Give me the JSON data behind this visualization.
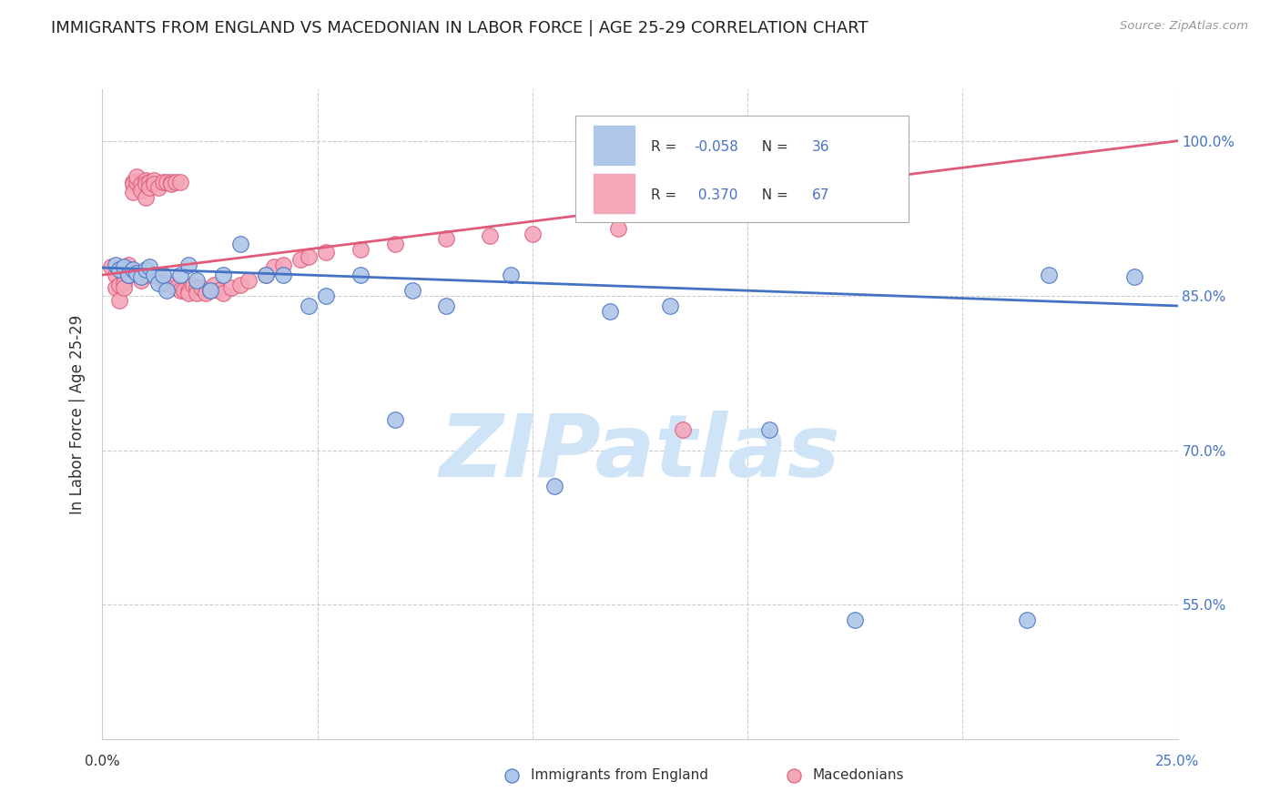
{
  "title": "IMMIGRANTS FROM ENGLAND VS MACEDONIAN IN LABOR FORCE | AGE 25-29 CORRELATION CHART",
  "source": "Source: ZipAtlas.com",
  "ylabel": "In Labor Force | Age 25-29",
  "y_tick_values": [
    1.0,
    0.85,
    0.7,
    0.55
  ],
  "xlim": [
    0.0,
    0.25
  ],
  "ylim": [
    0.42,
    1.05
  ],
  "legend_england": "Immigrants from England",
  "legend_macedonians": "Macedonians",
  "R_england": -0.058,
  "N_england": 36,
  "R_macedonian": 0.37,
  "N_macedonian": 67,
  "color_england": "#aec6e8",
  "color_macedonian": "#f4a7b9",
  "line_color_england": "#4472c4",
  "line_color_macedonian": "#e05a7a",
  "watermark": "ZIPatlas",
  "watermark_color": "#d0e4f7",
  "england_x": [
    0.003,
    0.004,
    0.005,
    0.006,
    0.007,
    0.008,
    0.009,
    0.01,
    0.011,
    0.012,
    0.013,
    0.014,
    0.015,
    0.018,
    0.02,
    0.022,
    0.025,
    0.028,
    0.032,
    0.038,
    0.042,
    0.048,
    0.052,
    0.06,
    0.068,
    0.072,
    0.08,
    0.095,
    0.105,
    0.118,
    0.132,
    0.155,
    0.175,
    0.215,
    0.22,
    0.24
  ],
  "england_y": [
    0.88,
    0.875,
    0.878,
    0.87,
    0.875,
    0.872,
    0.868,
    0.875,
    0.878,
    0.87,
    0.862,
    0.87,
    0.855,
    0.87,
    0.88,
    0.865,
    0.855,
    0.87,
    0.9,
    0.87,
    0.87,
    0.84,
    0.85,
    0.87,
    0.73,
    0.855,
    0.84,
    0.87,
    0.665,
    0.835,
    0.84,
    0.72,
    0.535,
    0.535,
    0.87,
    0.868
  ],
  "macedonian_x": [
    0.002,
    0.003,
    0.003,
    0.004,
    0.004,
    0.005,
    0.005,
    0.005,
    0.006,
    0.006,
    0.006,
    0.007,
    0.007,
    0.007,
    0.008,
    0.008,
    0.009,
    0.009,
    0.009,
    0.01,
    0.01,
    0.01,
    0.011,
    0.011,
    0.011,
    0.012,
    0.012,
    0.013,
    0.013,
    0.014,
    0.014,
    0.015,
    0.015,
    0.016,
    0.016,
    0.017,
    0.017,
    0.018,
    0.018,
    0.019,
    0.02,
    0.02,
    0.021,
    0.022,
    0.022,
    0.023,
    0.024,
    0.025,
    0.026,
    0.027,
    0.028,
    0.03,
    0.032,
    0.034,
    0.038,
    0.04,
    0.042,
    0.046,
    0.048,
    0.052,
    0.06,
    0.068,
    0.08,
    0.09,
    0.1,
    0.12,
    0.135
  ],
  "macedonian_y": [
    0.878,
    0.87,
    0.858,
    0.845,
    0.86,
    0.87,
    0.862,
    0.858,
    0.88,
    0.875,
    0.87,
    0.96,
    0.958,
    0.95,
    0.96,
    0.965,
    0.958,
    0.952,
    0.865,
    0.962,
    0.958,
    0.945,
    0.96,
    0.955,
    0.87,
    0.962,
    0.958,
    0.955,
    0.87,
    0.96,
    0.862,
    0.96,
    0.862,
    0.96,
    0.958,
    0.96,
    0.858,
    0.96,
    0.855,
    0.855,
    0.855,
    0.852,
    0.86,
    0.858,
    0.852,
    0.858,
    0.852,
    0.855,
    0.86,
    0.855,
    0.852,
    0.858,
    0.86,
    0.865,
    0.87,
    0.878,
    0.88,
    0.885,
    0.888,
    0.892,
    0.895,
    0.9,
    0.905,
    0.908,
    0.91,
    0.915,
    0.72
  ]
}
